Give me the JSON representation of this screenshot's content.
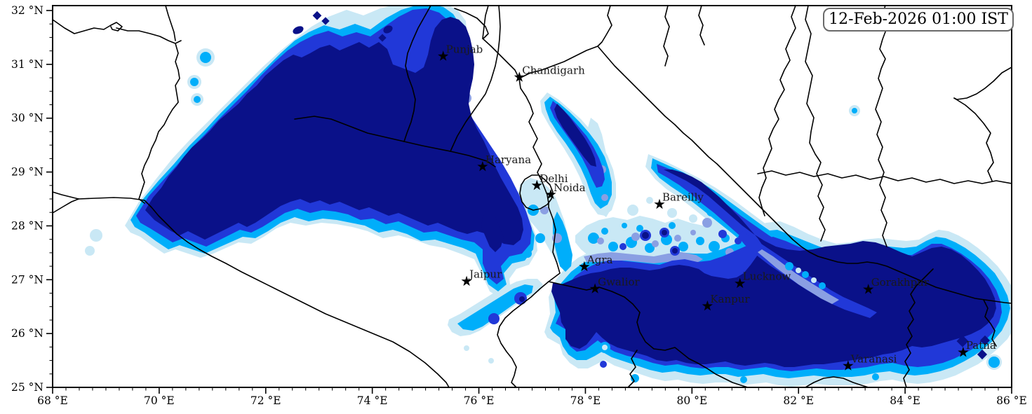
{
  "title_box": {
    "text": "12-Feb-2026 01:00 IST"
  },
  "axes": {
    "x": {
      "unit": "°E",
      "min": 68,
      "max": 86,
      "major_step": 2,
      "minor_step": 0.25,
      "tick_values": [
        68,
        70,
        72,
        74,
        76,
        78,
        80,
        82,
        84,
        86
      ],
      "tick_labels": [
        "68 °E",
        "70 °E",
        "72 °E",
        "74 °E",
        "76 °E",
        "78 °E",
        "80 °E",
        "82 °E",
        "84 °E",
        "86 °E"
      ]
    },
    "y": {
      "unit": "°N",
      "min": 25,
      "max": 32,
      "major_step": 1,
      "minor_step": 0.25,
      "tick_values": [
        25,
        26,
        27,
        28,
        29,
        30,
        31,
        32
      ],
      "tick_labels": [
        "25 °N",
        "26 °N",
        "27 °N",
        "28 °N",
        "29 °N",
        "30 °N",
        "31 °N",
        "32 °N"
      ]
    }
  },
  "cities": [
    {
      "name": "Punjab",
      "lon": 75.33,
      "lat": 31.15
    },
    {
      "name": "Chandigarh",
      "lon": 76.76,
      "lat": 30.76
    },
    {
      "name": "Haryana",
      "lon": 76.07,
      "lat": 29.1
    },
    {
      "name": "Delhi",
      "lon": 77.09,
      "lat": 28.75
    },
    {
      "name": "Noida",
      "lon": 77.35,
      "lat": 28.58
    },
    {
      "name": "Bareilly",
      "lon": 79.39,
      "lat": 28.4
    },
    {
      "name": "Jaipur",
      "lon": 75.77,
      "lat": 26.97
    },
    {
      "name": "Agra",
      "lon": 77.98,
      "lat": 27.24
    },
    {
      "name": "Gwalior",
      "lon": 78.18,
      "lat": 26.83
    },
    {
      "name": "Lucknow",
      "lon": 80.9,
      "lat": 26.93
    },
    {
      "name": "Kanpur",
      "lon": 80.29,
      "lat": 26.51
    },
    {
      "name": "Gorakhpur",
      "lon": 83.31,
      "lat": 26.82
    },
    {
      "name": "Varanasi",
      "lon": 82.93,
      "lat": 25.4
    },
    {
      "name": "Patna",
      "lon": 85.09,
      "lat": 25.65
    }
  ],
  "palette": {
    "level1_lightest": "#C9E8F5",
    "level2_light": "#8A9FE3",
    "level3_moderate": "#00AEFA",
    "level4_dense": "#2138D8",
    "level5_densest": "#0A1189"
  },
  "colors": {
    "background": "#FFFFFF",
    "boundary_lines": "#000000",
    "frame": "#000000",
    "tick_label": "#000000",
    "city_label": "#1A1A1A",
    "city_marker": "#000000",
    "title_text": "#000000",
    "title_border": "#6A6A6A"
  }
}
